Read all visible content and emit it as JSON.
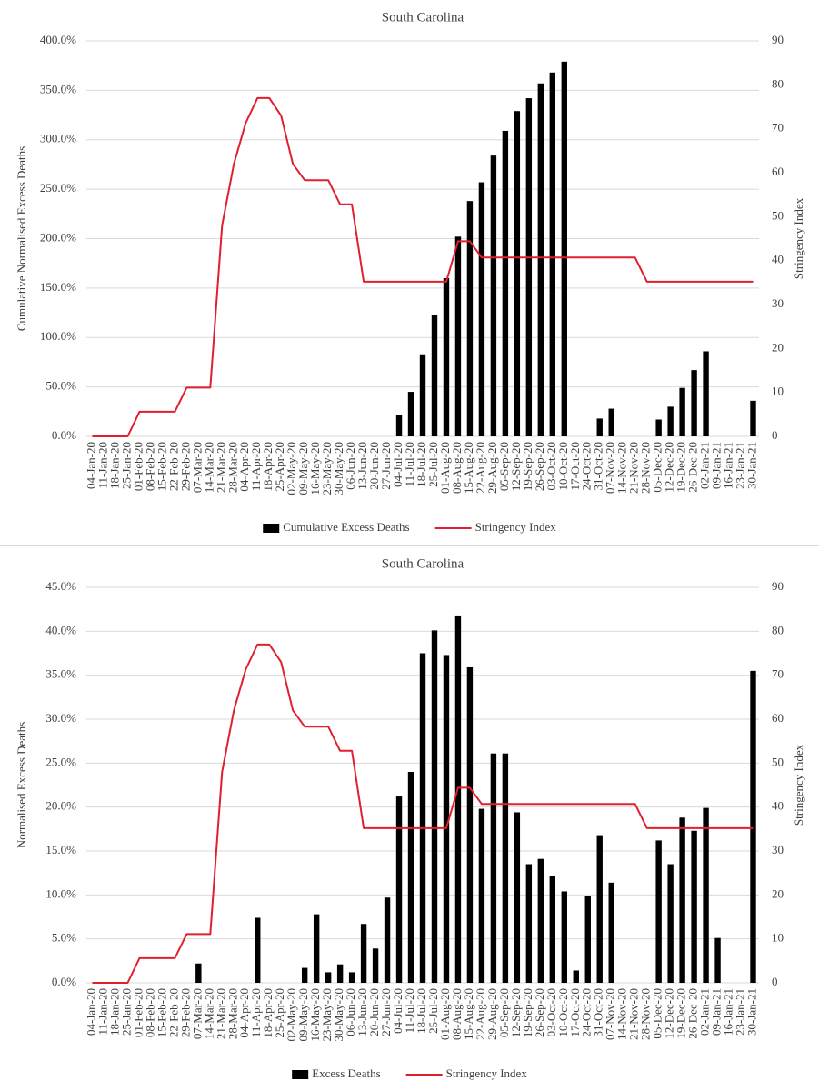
{
  "chart_data": [
    {
      "type": "combo",
      "title": "South Carolina",
      "y_label": "Cumulative Normalised Excess Deaths",
      "y2_label": "Stringency Index",
      "categories": [
        "04-Jan-20",
        "11-Jan-20",
        "18-Jan-20",
        "25-Jan-20",
        "01-Feb-20",
        "08-Feb-20",
        "15-Feb-20",
        "22-Feb-20",
        "29-Feb-20",
        "07-Mar-20",
        "14-Mar-20",
        "21-Mar-20",
        "28-Mar-20",
        "04-Apr-20",
        "11-Apr-20",
        "18-Apr-20",
        "25-Apr-20",
        "02-May-20",
        "09-May-20",
        "16-May-20",
        "23-May-20",
        "30-May-20",
        "06-Jun-20",
        "13-Jun-20",
        "20-Jun-20",
        "27-Jun-20",
        "04-Jul-20",
        "11-Jul-20",
        "18-Jul-20",
        "25-Jul-20",
        "01-Aug-20",
        "08-Aug-20",
        "15-Aug-20",
        "22-Aug-20",
        "29-Aug-20",
        "05-Sep-20",
        "12-Sep-20",
        "19-Sep-20",
        "26-Sep-20",
        "03-Oct-20",
        "10-Oct-20",
        "17-Oct-20",
        "24-Oct-20",
        "31-Oct-20",
        "07-Nov-20",
        "14-Nov-20",
        "21-Nov-20",
        "28-Nov-20",
        "05-Dec-20",
        "12-Dec-20",
        "19-Dec-20",
        "26-Dec-20",
        "02-Jan-21",
        "09-Jan-21",
        "16-Jan-21",
        "23-Jan-21",
        "30-Jan-21"
      ],
      "series": [
        {
          "name": "Cumulative Excess Deaths",
          "type": "bar",
          "color": "#000000",
          "values": [
            0,
            0,
            0,
            0,
            0,
            0,
            0,
            0,
            0,
            0,
            0,
            0,
            0,
            0,
            0,
            0,
            0,
            0,
            0,
            0,
            0,
            0,
            0,
            0,
            0,
            0,
            22,
            45,
            83,
            123,
            160,
            202,
            238,
            257,
            284,
            309,
            329,
            342,
            357,
            368,
            379,
            0,
            0,
            18,
            28,
            0,
            0,
            0,
            17,
            30,
            49,
            67,
            86,
            0,
            0,
            0,
            36
          ]
        },
        {
          "name": "Stringency Index",
          "type": "line",
          "axis": "y2",
          "color": "#e0202e",
          "values": [
            0,
            0,
            0,
            0,
            5.6,
            5.6,
            5.6,
            5.6,
            11.1,
            11.1,
            11.1,
            48,
            62,
            71.3,
            77,
            77,
            73,
            62,
            58.3,
            58.3,
            58.3,
            52.8,
            52.8,
            35.2,
            35.2,
            35.2,
            35.2,
            35.2,
            35.2,
            35.2,
            35.2,
            44.4,
            44.4,
            40.7,
            40.7,
            40.7,
            40.7,
            40.7,
            40.7,
            40.7,
            40.7,
            40.7,
            40.7,
            40.7,
            40.7,
            40.7,
            40.7,
            35.2,
            35.2,
            35.2,
            35.2,
            35.2,
            35.2,
            35.2,
            35.2,
            35.2,
            35.2
          ]
        }
      ],
      "ylim": [
        0,
        400
      ],
      "yticks": [
        {
          "value": 0,
          "label": "0.0%"
        },
        {
          "value": 50,
          "label": "50.0%"
        },
        {
          "value": 100,
          "label": "100.0%"
        },
        {
          "value": 150,
          "label": "150.0%"
        },
        {
          "value": 200,
          "label": "200.0%"
        },
        {
          "value": 250,
          "label": "250.0%"
        },
        {
          "value": 300,
          "label": "300.0%"
        },
        {
          "value": 350,
          "label": "350.0%"
        },
        {
          "value": 400,
          "label": "400.0%"
        }
      ],
      "y2lim": [
        0,
        90
      ],
      "y2ticks": [
        0,
        10,
        20,
        30,
        40,
        50,
        60,
        70,
        80,
        90
      ],
      "grid": true,
      "legend": "bottom"
    },
    {
      "type": "combo",
      "title": "South Carolina",
      "y_label": "Normalised Excess Deaths",
      "y2_label": "Stringency Index",
      "categories": [
        "04-Jan-20",
        "11-Jan-20",
        "18-Jan-20",
        "25-Jan-20",
        "01-Feb-20",
        "08-Feb-20",
        "15-Feb-20",
        "22-Feb-20",
        "29-Feb-20",
        "07-Mar-20",
        "14-Mar-20",
        "21-Mar-20",
        "28-Mar-20",
        "04-Apr-20",
        "11-Apr-20",
        "18-Apr-20",
        "25-Apr-20",
        "02-May-20",
        "09-May-20",
        "16-May-20",
        "23-May-20",
        "30-May-20",
        "06-Jun-20",
        "13-Jun-20",
        "20-Jun-20",
        "27-Jun-20",
        "04-Jul-20",
        "11-Jul-20",
        "18-Jul-20",
        "25-Jul-20",
        "01-Aug-20",
        "08-Aug-20",
        "15-Aug-20",
        "22-Aug-20",
        "29-Aug-20",
        "05-Sep-20",
        "12-Sep-20",
        "19-Sep-20",
        "26-Sep-20",
        "03-Oct-20",
        "10-Oct-20",
        "17-Oct-20",
        "24-Oct-20",
        "31-Oct-20",
        "07-Nov-20",
        "14-Nov-20",
        "21-Nov-20",
        "28-Nov-20",
        "05-Dec-20",
        "12-Dec-20",
        "19-Dec-20",
        "26-Dec-20",
        "02-Jan-21",
        "09-Jan-21",
        "16-Jan-21",
        "23-Jan-21",
        "30-Jan-21"
      ],
      "series": [
        {
          "name": "Excess Deaths",
          "type": "bar",
          "color": "#000000",
          "values": [
            0,
            0,
            0,
            0,
            0,
            0,
            0,
            0,
            0,
            2.2,
            0,
            0,
            0,
            0,
            7.4,
            0,
            0,
            0,
            1.7,
            7.8,
            1.2,
            2.1,
            1.2,
            6.7,
            3.9,
            9.7,
            21.2,
            24.0,
            37.5,
            40.1,
            37.3,
            41.8,
            35.9,
            19.8,
            26.1,
            26.1,
            19.4,
            13.5,
            14.1,
            12.2,
            10.4,
            1.4,
            9.9,
            16.8,
            11.4,
            0,
            0,
            0,
            16.2,
            13.5,
            18.8,
            17.3,
            19.9,
            5.1,
            0,
            0,
            35.5
          ]
        },
        {
          "name": "Stringency Index",
          "type": "line",
          "axis": "y2",
          "color": "#e0202e",
          "values": [
            0,
            0,
            0,
            0,
            5.6,
            5.6,
            5.6,
            5.6,
            11.1,
            11.1,
            11.1,
            48,
            62,
            71.3,
            77,
            77,
            73,
            62,
            58.3,
            58.3,
            58.3,
            52.8,
            52.8,
            35.2,
            35.2,
            35.2,
            35.2,
            35.2,
            35.2,
            35.2,
            35.2,
            44.4,
            44.4,
            40.7,
            40.7,
            40.7,
            40.7,
            40.7,
            40.7,
            40.7,
            40.7,
            40.7,
            40.7,
            40.7,
            40.7,
            40.7,
            40.7,
            35.2,
            35.2,
            35.2,
            35.2,
            35.2,
            35.2,
            35.2,
            35.2,
            35.2,
            35.2
          ]
        }
      ],
      "ylim": [
        0,
        45
      ],
      "yticks": [
        {
          "value": 0,
          "label": "0.0%"
        },
        {
          "value": 5,
          "label": "5.0%"
        },
        {
          "value": 10,
          "label": "10.0%"
        },
        {
          "value": 15,
          "label": "15.0%"
        },
        {
          "value": 20,
          "label": "20.0%"
        },
        {
          "value": 25,
          "label": "25.0%"
        },
        {
          "value": 30,
          "label": "30.0%"
        },
        {
          "value": 35,
          "label": "35.0%"
        },
        {
          "value": 40,
          "label": "40.0%"
        },
        {
          "value": 45,
          "label": "45.0%"
        }
      ],
      "y2lim": [
        0,
        90
      ],
      "y2ticks": [
        0,
        10,
        20,
        30,
        40,
        50,
        60,
        70,
        80,
        90
      ],
      "grid": true,
      "legend": "bottom"
    }
  ]
}
